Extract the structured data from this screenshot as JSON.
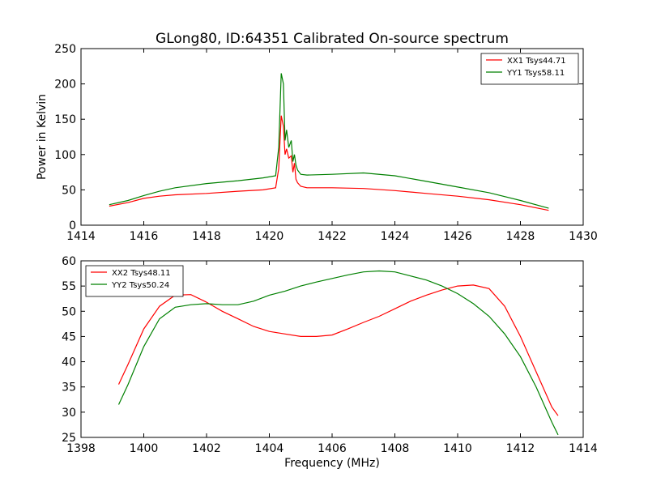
{
  "figure": {
    "title": "GLong80, ID:64351 Calibrated On-source spectrum"
  },
  "chart_data": [
    {
      "type": "line",
      "title": "GLong80, ID:64351 Calibrated On-source spectrum",
      "xlabel": "",
      "ylabel": "Power in Kelvin",
      "xlim": [
        1414,
        1430
      ],
      "ylim": [
        0,
        250
      ],
      "xticks": [
        1414,
        1416,
        1418,
        1420,
        1422,
        1424,
        1426,
        1428,
        1430
      ],
      "yticks": [
        0,
        50,
        100,
        150,
        200,
        250
      ],
      "grid": false,
      "legend": "top-right",
      "series": [
        {
          "name": "XX1 Tsys44.71",
          "color": "#ff0000",
          "x": [
            1414.9,
            1415.5,
            1416.0,
            1416.5,
            1417.0,
            1418.0,
            1419.0,
            1419.8,
            1420.2,
            1420.3,
            1420.38,
            1420.45,
            1420.5,
            1420.55,
            1420.62,
            1420.7,
            1420.75,
            1420.8,
            1420.85,
            1420.9,
            1421.0,
            1421.2,
            1422.0,
            1423.0,
            1424.0,
            1425.0,
            1426.0,
            1427.0,
            1428.0,
            1428.9
          ],
          "values": [
            27,
            32,
            38,
            41,
            43,
            45,
            48,
            50,
            53,
            80,
            155,
            140,
            100,
            108,
            95,
            98,
            75,
            88,
            65,
            60,
            55,
            53,
            53,
            52,
            49,
            45,
            41,
            36,
            29,
            21
          ]
        },
        {
          "name": "YY1 Tsys58.11",
          "color": "#008000",
          "x": [
            1414.9,
            1415.5,
            1416.0,
            1416.5,
            1417.0,
            1418.0,
            1419.0,
            1419.8,
            1420.2,
            1420.3,
            1420.38,
            1420.45,
            1420.5,
            1420.55,
            1420.62,
            1420.7,
            1420.75,
            1420.8,
            1420.85,
            1420.9,
            1421.0,
            1421.2,
            1422.0,
            1423.0,
            1424.0,
            1425.0,
            1426.0,
            1427.0,
            1428.0,
            1428.9
          ],
          "values": [
            29,
            35,
            42,
            48,
            53,
            59,
            63,
            67,
            70,
            110,
            215,
            200,
            120,
            135,
            110,
            120,
            90,
            100,
            85,
            78,
            72,
            71,
            72,
            74,
            70,
            62,
            54,
            46,
            35,
            24
          ]
        }
      ]
    },
    {
      "type": "line",
      "title": "",
      "xlabel": "Frequency (MHz)",
      "ylabel": "",
      "xlim": [
        1398,
        1414
      ],
      "ylim": [
        25,
        60
      ],
      "xticks": [
        1398,
        1400,
        1402,
        1404,
        1406,
        1408,
        1410,
        1412,
        1414
      ],
      "yticks": [
        25,
        30,
        35,
        40,
        45,
        50,
        55,
        60
      ],
      "grid": false,
      "legend": "top-left",
      "series": [
        {
          "name": "XX2 Tsys48.11",
          "color": "#ff0000",
          "x": [
            1399.2,
            1399.5,
            1400.0,
            1400.5,
            1401.0,
            1401.5,
            1402.0,
            1402.5,
            1403.0,
            1403.5,
            1404.0,
            1404.5,
            1405.0,
            1405.5,
            1406.0,
            1406.5,
            1407.0,
            1407.5,
            1408.0,
            1408.5,
            1409.0,
            1409.5,
            1410.0,
            1410.5,
            1411.0,
            1411.5,
            1412.0,
            1412.5,
            1413.0,
            1413.2
          ],
          "values": [
            35.5,
            39.5,
            46.5,
            51.0,
            53.2,
            53.3,
            51.8,
            50.0,
            48.5,
            47.0,
            46.0,
            45.5,
            45.0,
            45.0,
            45.3,
            46.5,
            47.8,
            49.0,
            50.5,
            52.0,
            53.2,
            54.2,
            55.0,
            55.2,
            54.5,
            51.0,
            45.0,
            38.0,
            31.0,
            29.3
          ]
        },
        {
          "name": "YY2 Tsys50.24",
          "color": "#008000",
          "x": [
            1399.2,
            1399.5,
            1400.0,
            1400.5,
            1401.0,
            1401.5,
            1402.0,
            1402.5,
            1403.0,
            1403.5,
            1404.0,
            1404.5,
            1405.0,
            1405.5,
            1406.0,
            1406.5,
            1407.0,
            1407.5,
            1408.0,
            1408.5,
            1409.0,
            1409.5,
            1410.0,
            1410.5,
            1411.0,
            1411.5,
            1412.0,
            1412.5,
            1413.0,
            1413.2
          ],
          "values": [
            31.5,
            35.5,
            43.0,
            48.5,
            50.8,
            51.3,
            51.5,
            51.3,
            51.3,
            52.0,
            53.2,
            54.0,
            55.0,
            55.8,
            56.5,
            57.2,
            57.8,
            58.0,
            57.8,
            57.0,
            56.2,
            55.0,
            53.5,
            51.5,
            49.0,
            45.5,
            41.0,
            35.0,
            28.0,
            25.5
          ]
        }
      ]
    }
  ]
}
